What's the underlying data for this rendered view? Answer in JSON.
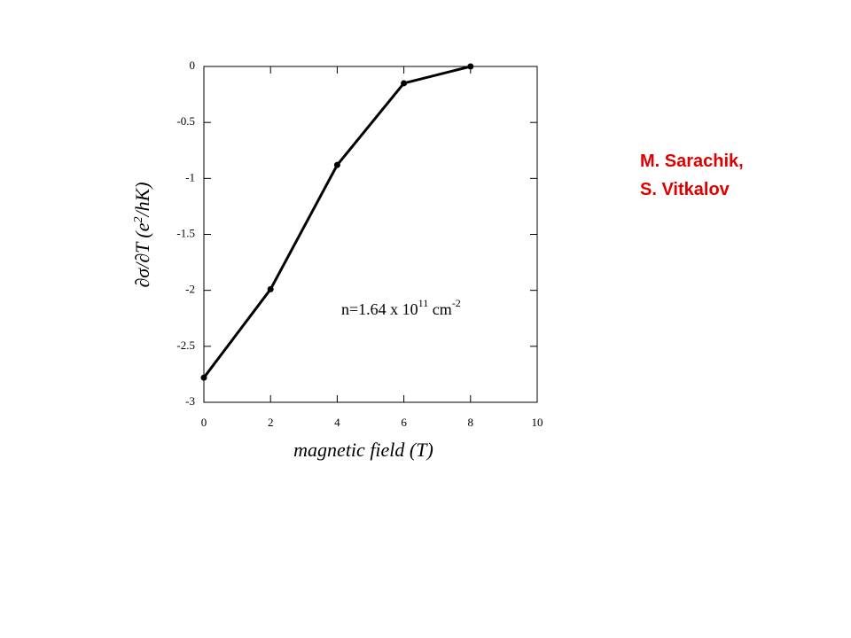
{
  "chart_data": {
    "type": "line",
    "ylabel": [
      "∂σ/∂T  (e",
      "2",
      "/hK)"
    ],
    "xlabel": "magnetic field (T)",
    "annotation": [
      "n=1.64 x 10",
      "11",
      " cm",
      "-2"
    ],
    "x": [
      0,
      2,
      4,
      6,
      8
    ],
    "series": [
      {
        "color": "#000000",
        "values": [
          -2.78,
          -1.99,
          -0.88,
          -0.15,
          0.0
        ]
      }
    ],
    "xlim": [
      0,
      10
    ],
    "xticks": [
      0,
      2,
      4,
      6,
      8,
      10
    ],
    "ylim": [
      -3,
      0
    ],
    "yticks": [
      0,
      -0.5,
      -1,
      -1.5,
      -2,
      -2.5,
      -3
    ]
  },
  "authors": [
    "M. Sarachik,",
    "S. Vitkalov"
  ]
}
